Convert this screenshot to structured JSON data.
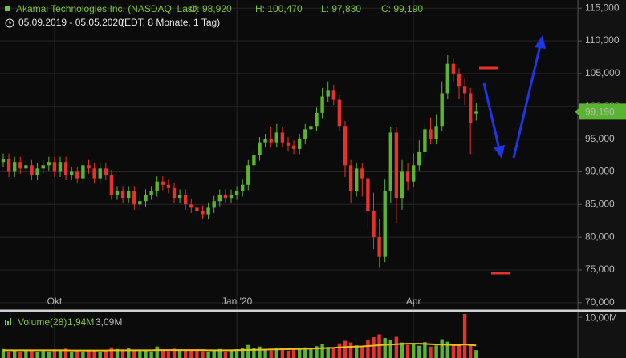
{
  "chart_data": {
    "type": "candlestick",
    "title": "Akamai Technologies Inc. (NASDAQ, Last)",
    "quote": [
      "O: 98,920",
      "H: 100,470",
      "L: 97,830",
      "C: 99,190"
    ],
    "date_range": "05.09.2019 - 05.05.2020",
    "period": "(EDT, 8 Monate, 1 Tag)",
    "up_color": "#5cb531",
    "down_color": "#e5322c",
    "grid": true,
    "categories": [
      null,
      null,
      null,
      null,
      null,
      null,
      null,
      null,
      null,
      "Okt",
      null,
      null,
      null,
      null,
      null,
      null,
      null,
      null,
      null,
      null,
      null,
      null,
      null,
      null,
      null,
      null,
      null,
      null,
      null,
      null,
      null,
      null,
      null,
      null,
      null,
      null,
      null,
      null,
      null,
      null,
      null,
      "Jan '20",
      null,
      null,
      null,
      null,
      null,
      null,
      null,
      null,
      null,
      null,
      null,
      null,
      null,
      null,
      null,
      null,
      null,
      null,
      null,
      null,
      null,
      null,
      null,
      null,
      null,
      null,
      null,
      null,
      null,
      null,
      "Apr",
      null,
      null,
      null,
      null,
      null,
      null,
      null,
      null,
      null,
      null,
      null
    ],
    "open": [
      91.5,
      92,
      90,
      91.5,
      90.5,
      91,
      89.5,
      90.5,
      91,
      91.5,
      90,
      91.5,
      89.5,
      90,
      89,
      91,
      90.5,
      89,
      90.5,
      89.5,
      86.5,
      87,
      86,
      87,
      85,
      85.5,
      86.5,
      87,
      88.5,
      88,
      87.5,
      86,
      86.5,
      85,
      84.5,
      84,
      83.5,
      84.5,
      85.5,
      86.5,
      86,
      86.5,
      87,
      88,
      91,
      92.5,
      94.5,
      95,
      94.5,
      96,
      94.5,
      94,
      93.5,
      95,
      96.5,
      97,
      99,
      101.5,
      102.5,
      101,
      97,
      91,
      87,
      90.5,
      89,
      84,
      80,
      77,
      87,
      96,
      86,
      90,
      88.5,
      91,
      93,
      96.5,
      95,
      97,
      102,
      106.5,
      105,
      103,
      102,
      98.92
    ],
    "high": [
      92.8,
      92.8,
      92.3,
      92.3,
      91.8,
      91.8,
      91.3,
      91.8,
      92.3,
      92.3,
      92.3,
      92.3,
      90.8,
      90.8,
      91.8,
      91.8,
      91.3,
      91.3,
      91.3,
      90.3,
      87.8,
      87.8,
      87.8,
      87.8,
      86.3,
      87.3,
      87.8,
      89.3,
      89.3,
      88.8,
      88.3,
      87.3,
      87.3,
      85.8,
      85.3,
      84.8,
      85.3,
      86.3,
      87.3,
      87.3,
      87.3,
      87.8,
      88.8,
      91.8,
      93.3,
      95.3,
      95.8,
      96.8,
      97.3,
      96.8,
      95.3,
      94.8,
      95.8,
      97.3,
      97.8,
      99.8,
      102.8,
      103.8,
      103.3,
      101.8,
      97.8,
      91.8,
      91.3,
      91.3,
      89.8,
      86.8,
      82.8,
      88.8,
      96.8,
      96.8,
      91.8,
      91.3,
      92.8,
      94.8,
      97.3,
      98.3,
      98.8,
      103.8,
      107.8,
      107.3,
      105.8,
      104.3,
      102.8,
      100.47
    ],
    "low": [
      90.7,
      89.2,
      89.2,
      89.7,
      89.7,
      88.7,
      88.7,
      89.7,
      90.2,
      89.2,
      89.2,
      88.7,
      88.7,
      88.2,
      88.2,
      89.7,
      88.2,
      88.2,
      88.7,
      85.7,
      85.7,
      85.2,
      85.2,
      84.2,
      84.2,
      84.7,
      85.7,
      86.2,
      87.2,
      86.7,
      85.2,
      85.2,
      84.2,
      83.7,
      83.2,
      82.7,
      82.7,
      83.7,
      84.7,
      85.2,
      85.2,
      85.7,
      86.2,
      87.2,
      90.2,
      91.7,
      93.7,
      93.7,
      93.7,
      93.7,
      93.2,
      92.7,
      92.7,
      94.2,
      95.7,
      96.2,
      98.2,
      100.7,
      100.2,
      96.2,
      89.2,
      85.2,
      86.2,
      86.2,
      81.2,
      78.2,
      75.3,
      76.2,
      85.2,
      82.2,
      84.2,
      87.2,
      87.7,
      90.2,
      92.2,
      94.2,
      94.2,
      96.2,
      101.2,
      103.7,
      101.2,
      100.2,
      92.7,
      97.83
    ],
    "close": [
      92,
      90,
      91.5,
      90.5,
      91,
      89.5,
      90.5,
      91,
      91.5,
      90,
      91.5,
      89.5,
      90,
      89,
      91,
      90.5,
      89,
      90.5,
      89.5,
      86.5,
      87,
      86,
      87,
      85,
      85.5,
      86.5,
      87,
      88.5,
      88,
      87.5,
      86,
      86.5,
      85,
      84.5,
      84,
      83.5,
      84.5,
      85.5,
      86.5,
      86,
      86.5,
      87,
      88,
      91,
      92.5,
      94.5,
      95,
      94.5,
      96,
      94.5,
      94,
      93.5,
      95,
      96.5,
      97,
      99,
      101.5,
      102.5,
      101,
      97,
      91,
      87,
      90.5,
      89,
      84,
      80,
      77,
      87,
      96,
      86,
      90,
      88.5,
      91,
      93,
      96.5,
      95,
      97,
      102,
      106.5,
      105,
      103,
      102,
      97.5,
      99.19
    ],
    "ylim": [
      69,
      116.25
    ],
    "yticks": [
      {
        "value": 70,
        "label": "70,000"
      },
      {
        "value": 75,
        "label": "75,000"
      },
      {
        "value": 80,
        "label": "80,000"
      },
      {
        "value": 85,
        "label": "85,000"
      },
      {
        "value": 90,
        "label": "90,000"
      },
      {
        "value": 95,
        "label": "95,000"
      },
      {
        "value": 100,
        "label": "100,000"
      },
      {
        "value": 105,
        "label": "105,000"
      },
      {
        "value": 110,
        "label": "110,000"
      },
      {
        "value": 115,
        "label": "115,000"
      }
    ],
    "last": {
      "value": 99.19,
      "label": "99,190",
      "color": "#5cb531"
    },
    "volume": {
      "name": "Volume(28)",
      "last_label": "1,94M",
      "ma_label": "3,09M",
      "ma_color": "#e8c21a",
      "values": [
        2.2,
        1.6,
        1.8,
        1.5,
        1.9,
        2.0,
        1.4,
        1.7,
        1.6,
        2.1,
        1.8,
        2.3,
        1.5,
        1.7,
        1.6,
        2.0,
        1.8,
        1.5,
        1.9,
        2.6,
        2.2,
        1.8,
        2.4,
        1.9,
        1.7,
        2.0,
        1.6,
        2.8,
        1.8,
        1.7,
        2.3,
        1.9,
        2.1,
        1.8,
        2.0,
        1.7,
        1.5,
        1.9,
        2.2,
        1.6,
        1.8,
        2.1,
        2.4,
        3.2,
        2.5,
        2.8,
        2.2,
        1.9,
        2.4,
        2.0,
        1.8,
        2.1,
        2.3,
        2.6,
        2.2,
        2.9,
        3.4,
        2.7,
        2.5,
        3.6,
        4.2,
        3.8,
        3.1,
        2.9,
        4.5,
        5.1,
        5.8,
        4.9,
        4.4,
        5.2,
        3.8,
        3.2,
        3.5,
        3.0,
        3.9,
        2.8,
        3.1,
        4.6,
        4.0,
        3.3,
        3.0,
        10.8,
        3.4,
        1.94
      ],
      "ma_values": [
        1.9,
        1.9,
        1.9,
        1.9,
        1.9,
        1.9,
        1.9,
        1.9,
        1.9,
        1.9,
        1.9,
        1.9,
        1.85,
        1.85,
        1.85,
        1.85,
        1.85,
        1.85,
        1.85,
        1.9,
        1.9,
        1.9,
        1.9,
        1.9,
        1.9,
        1.9,
        1.9,
        1.95,
        1.95,
        1.95,
        1.95,
        1.95,
        1.95,
        1.95,
        1.95,
        1.95,
        1.9,
        1.9,
        1.9,
        1.9,
        1.9,
        1.95,
        1.95,
        2.0,
        2.0,
        2.05,
        2.05,
        2.1,
        2.1,
        2.15,
        2.15,
        2.2,
        2.2,
        2.25,
        2.3,
        2.35,
        2.4,
        2.45,
        2.5,
        2.6,
        2.7,
        2.75,
        2.8,
        2.85,
        2.95,
        3.05,
        3.15,
        3.25,
        3.3,
        3.4,
        3.45,
        3.5,
        3.5,
        3.5,
        3.45,
        3.4,
        3.35,
        3.3,
        3.25,
        3.2,
        3.15,
        3.35,
        3.2,
        3.09
      ],
      "ylim": [
        0,
        11
      ],
      "yticks": [
        {
          "value": 10,
          "label": "10,00M"
        }
      ]
    }
  }
}
